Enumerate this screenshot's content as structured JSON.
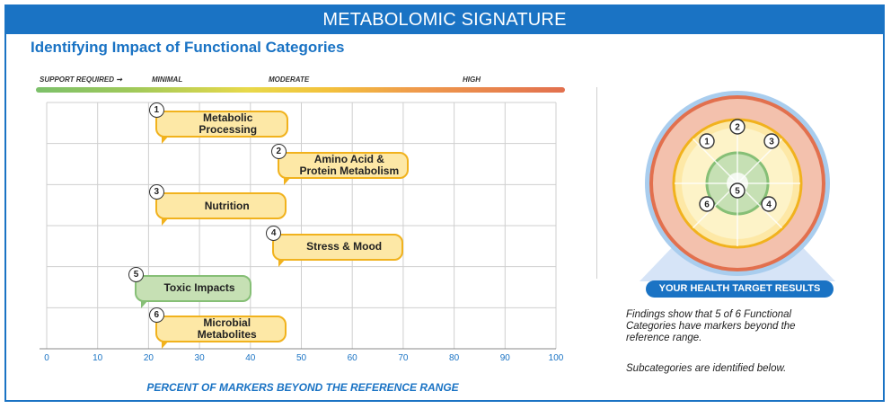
{
  "header": {
    "title": "METABOLOMIC SIGNATURE",
    "subtitle": "Identifying Impact of Functional Categories"
  },
  "levels": {
    "support": "SUPPORT REQUIRED ➞",
    "minimal": "MINIMAL",
    "moderate": "MODERATE",
    "high": "HIGH"
  },
  "chart_data": {
    "type": "range-bar",
    "title": "Identifying Impact of Functional Categories",
    "xlabel": "PERCENT OF MARKERS BEYOND THE REFERENCE RANGE",
    "xlim": [
      0,
      100
    ],
    "ticks": [
      "0",
      "10",
      "20",
      "30",
      "40",
      "50",
      "60",
      "70",
      "80",
      "90",
      "100"
    ],
    "categories": [
      {
        "n": "1",
        "label": "Metabolic Processing",
        "line1": "Metabolic",
        "line2": "Processing",
        "value": 22,
        "color": "yellow"
      },
      {
        "n": "2",
        "label": "Amino Acid & Protein Metabolism",
        "line1": "Amino Acid &",
        "line2": "Protein Metabolism",
        "value": 46,
        "color": "yellow"
      },
      {
        "n": "3",
        "label": "Nutrition",
        "line1": "Nutrition",
        "line2": "",
        "value": 22,
        "color": "yellow"
      },
      {
        "n": "4",
        "label": "Stress & Mood",
        "line1": "Stress & Mood",
        "line2": "",
        "value": 45,
        "color": "yellow"
      },
      {
        "n": "5",
        "label": "Toxic Impacts",
        "line1": "Toxic Impacts",
        "line2": "",
        "value": 18,
        "color": "green"
      },
      {
        "n": "6",
        "label": "Microbial Metabolites",
        "line1": "Microbial",
        "line2": "Metabolites",
        "value": 22,
        "color": "yellow"
      }
    ]
  },
  "target": {
    "pill": "YOUR HEALTH TARGET RESULTS",
    "findings": "Findings show that 5 of 6 Functional Categories have markers beyond the reference range.",
    "subcategories": "Subcategories are identified below.",
    "markers": [
      "1",
      "2",
      "3",
      "4",
      "5",
      "6"
    ]
  },
  "colors": {
    "brand": "#1a73c4",
    "yellow_fill": "#fde8a6",
    "yellow_border": "#f1b21d",
    "green_fill": "#c6e0b4",
    "green_border": "#86bf76",
    "outer_ring": "#e2704e"
  }
}
